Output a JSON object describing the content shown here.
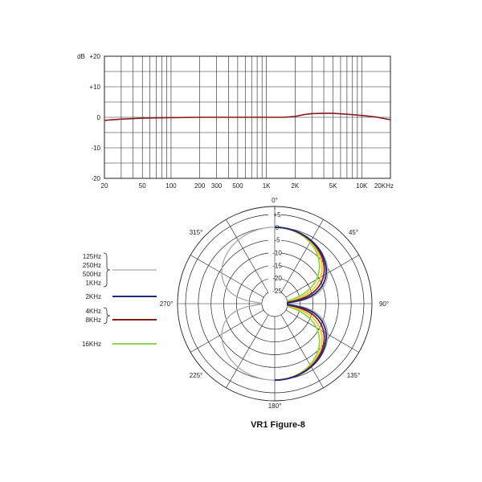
{
  "chart_data": [
    {
      "type": "line",
      "ylabel": "dB",
      "ylim": [
        -20,
        20
      ],
      "xscale": "log",
      "xlim": [
        20,
        20000
      ],
      "grid": true,
      "x_tick_labels": [
        {
          "v": 20,
          "label": "20"
        },
        {
          "v": 50,
          "label": "50"
        },
        {
          "v": 100,
          "label": "100"
        },
        {
          "v": 200,
          "label": "200"
        },
        {
          "v": 300,
          "label": "300"
        },
        {
          "v": 500,
          "label": "500"
        },
        {
          "v": 1000,
          "label": "1K"
        },
        {
          "v": 2000,
          "label": "2K"
        },
        {
          "v": 5000,
          "label": "5K"
        },
        {
          "v": 10000,
          "label": "10K"
        },
        {
          "v": 20000,
          "label": "20KHz"
        }
      ],
      "y_tick_labels": [
        {
          "v": 20,
          "label": "+20"
        },
        {
          "v": 10,
          "label": "+10"
        },
        {
          "v": 0,
          "label": "0"
        },
        {
          "v": -10,
          "label": "-10"
        },
        {
          "v": -20,
          "label": "-20"
        }
      ],
      "series": [
        {
          "color": "#8b1a1a",
          "points": [
            [
              20,
              -1.0
            ],
            [
              30,
              -0.6
            ],
            [
              50,
              -0.3
            ],
            [
              100,
              -0.1
            ],
            [
              200,
              0
            ],
            [
              500,
              0
            ],
            [
              1000,
              0
            ],
            [
              1500,
              0
            ],
            [
              2000,
              0.3
            ],
            [
              2500,
              0.9
            ],
            [
              3000,
              1.2
            ],
            [
              4000,
              1.3
            ],
            [
              5000,
              1.3
            ],
            [
              7000,
              1.0
            ],
            [
              10000,
              0.6
            ],
            [
              14000,
              0.1
            ],
            [
              20000,
              -0.8
            ]
          ]
        }
      ]
    },
    {
      "type": "polar",
      "angle_labels": [
        {
          "deg": 0,
          "label": "0°"
        },
        {
          "deg": 45,
          "label": "45°"
        },
        {
          "deg": 90,
          "label": "90°"
        },
        {
          "deg": 135,
          "label": "135°"
        },
        {
          "deg": 180,
          "label": "180°"
        },
        {
          "deg": 225,
          "label": "225°"
        },
        {
          "deg": 270,
          "label": "270°"
        },
        {
          "deg": 315,
          "label": "315°"
        }
      ],
      "rlim": [
        -25,
        5
      ],
      "r_ticks": [
        {
          "v": 5,
          "label": "+5"
        },
        {
          "v": 0,
          "label": "0"
        },
        {
          "v": -5,
          "label": "-5"
        },
        {
          "v": -10,
          "label": "-10"
        },
        {
          "v": -15,
          "label": "-15"
        },
        {
          "v": -20,
          "label": "-20"
        },
        {
          "v": -25,
          "label": "-25"
        }
      ],
      "series": [
        {
          "label_lines": [
            "125Hz",
            "250Hz",
            "500Hz",
            "1KHz"
          ],
          "color": "#a8a8a8",
          "pattern": "figure-8",
          "narrowing": 0
        },
        {
          "label_lines": [
            "2KHz"
          ],
          "color": "#1c2a7a",
          "pattern": "figure-8",
          "narrowing": 0.02,
          "side": "right"
        },
        {
          "label_lines": [
            "4KHz",
            "8KHz"
          ],
          "color": "#8b1a1a",
          "pattern": "figure-8",
          "narrowing": 0.05,
          "side": "right"
        },
        {
          "label_lines": [
            "16KHz"
          ],
          "color": "#8fd44a",
          "pattern": "figure-8",
          "narrowing": 0.14,
          "side": "right"
        }
      ],
      "extra_series": [
        {
          "color": "#e8c832",
          "pattern": "figure-8",
          "narrowing": 0.09,
          "side": "right"
        }
      ],
      "caption": "VR1 Figure-8"
    }
  ]
}
